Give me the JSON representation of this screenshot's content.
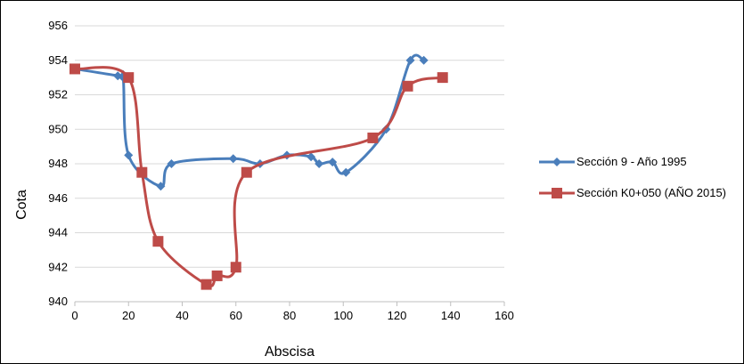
{
  "chart_data": {
    "type": "line",
    "title": "",
    "xlabel": "Abscisa",
    "ylabel": "Cota",
    "xlim": [
      0,
      160
    ],
    "ylim": [
      940,
      956
    ],
    "x_ticks": [
      0,
      20,
      40,
      60,
      80,
      100,
      120,
      140,
      160
    ],
    "y_ticks": [
      940,
      942,
      944,
      946,
      948,
      950,
      952,
      954,
      956
    ],
    "grid": "horizontal",
    "smooth": true,
    "legend_position": "right",
    "series": [
      {
        "name": "Sección 9 - Año 1995",
        "color": "#4a7ebb",
        "marker": "diamond",
        "points": [
          {
            "x": 0,
            "y": 953.5
          },
          {
            "x": 16,
            "y": 953.1
          },
          {
            "x": 18,
            "y": 953.0
          },
          {
            "x": 20,
            "y": 948.5
          },
          {
            "x": 32,
            "y": 946.7
          },
          {
            "x": 36,
            "y": 948.0
          },
          {
            "x": 59,
            "y": 948.3
          },
          {
            "x": 69,
            "y": 948.0
          },
          {
            "x": 79,
            "y": 948.5
          },
          {
            "x": 88,
            "y": 948.4
          },
          {
            "x": 91,
            "y": 948.0
          },
          {
            "x": 96,
            "y": 948.1
          },
          {
            "x": 101,
            "y": 947.5
          },
          {
            "x": 116,
            "y": 950.0
          },
          {
            "x": 125,
            "y": 954.0
          },
          {
            "x": 130,
            "y": 954.0
          }
        ]
      },
      {
        "name": "Sección K0+050 (AÑO 2015)",
        "color": "#be4b48",
        "marker": "square",
        "points": [
          {
            "x": 0,
            "y": 953.5
          },
          {
            "x": 20,
            "y": 953.0
          },
          {
            "x": 25,
            "y": 947.5
          },
          {
            "x": 31,
            "y": 943.5
          },
          {
            "x": 49,
            "y": 941.0
          },
          {
            "x": 53,
            "y": 941.5
          },
          {
            "x": 60,
            "y": 942.0
          },
          {
            "x": 64,
            "y": 947.5
          },
          {
            "x": 111,
            "y": 949.5
          },
          {
            "x": 124,
            "y": 952.5
          },
          {
            "x": 137,
            "y": 953.0
          }
        ]
      }
    ]
  }
}
